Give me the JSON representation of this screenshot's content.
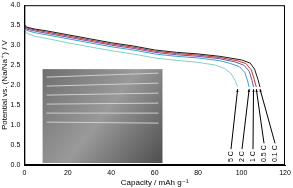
{
  "chart_data": {
    "type": "line",
    "x_label": "Capacity / mAh g⁻¹",
    "y_label": "Potential vs. (Na/Na⁺) / V",
    "series": [
      {
        "name": "0.1 C",
        "color": "#1a1a1a",
        "x": [
          0,
          1,
          5,
          10,
          20,
          30,
          40,
          50,
          60,
          70,
          80,
          90,
          100,
          104,
          106,
          107.5,
          108.5
        ],
        "values": [
          3.52,
          3.45,
          3.4,
          3.36,
          3.26,
          3.16,
          3.06,
          2.98,
          2.88,
          2.82,
          2.78,
          2.72,
          2.63,
          2.55,
          2.4,
          2.15,
          1.95
        ]
      },
      {
        "name": "0.5 C",
        "color": "#c0392b",
        "x": [
          0,
          1,
          5,
          10,
          20,
          30,
          40,
          50,
          60,
          70,
          80,
          90,
          98,
          102,
          104.5,
          105.8,
          106.8
        ],
        "values": [
          3.5,
          3.43,
          3.38,
          3.33,
          3.23,
          3.13,
          3.03,
          2.95,
          2.85,
          2.79,
          2.75,
          2.69,
          2.61,
          2.54,
          2.38,
          2.15,
          1.95
        ]
      },
      {
        "name": "1 C",
        "color": "#7d4fa8",
        "x": [
          0,
          1,
          5,
          10,
          20,
          30,
          40,
          50,
          60,
          70,
          80,
          90,
          97,
          101,
          103.5,
          104.8,
          105.5
        ],
        "values": [
          3.48,
          3.4,
          3.35,
          3.3,
          3.2,
          3.1,
          3.0,
          2.92,
          2.82,
          2.76,
          2.72,
          2.66,
          2.58,
          2.5,
          2.35,
          2.12,
          1.95
        ]
      },
      {
        "name": "2 C",
        "color": "#3b9fd1",
        "x": [
          0,
          1,
          5,
          10,
          20,
          30,
          40,
          50,
          60,
          70,
          80,
          90,
          95,
          99,
          101.5,
          102.8,
          103.5
        ],
        "values": [
          3.45,
          3.37,
          3.31,
          3.26,
          3.16,
          3.06,
          2.96,
          2.88,
          2.78,
          2.72,
          2.68,
          2.61,
          2.54,
          2.46,
          2.32,
          2.1,
          1.95
        ]
      },
      {
        "name": "5 C",
        "color": "#7fd3c8",
        "x": [
          0,
          1,
          5,
          10,
          20,
          30,
          40,
          50,
          60,
          70,
          80,
          88,
          92,
          95,
          97,
          98.2
        ],
        "values": [
          3.4,
          3.3,
          3.22,
          3.17,
          3.06,
          2.96,
          2.86,
          2.78,
          2.68,
          2.62,
          2.57,
          2.5,
          2.42,
          2.3,
          2.12,
          1.95
        ]
      }
    ],
    "xlim": [
      0,
      120
    ],
    "xticks": [
      0,
      20,
      40,
      60,
      80,
      100,
      120
    ],
    "ylim": [
      0,
      4
    ],
    "yticks": [
      {
        "value": 0,
        "label": "0.0"
      },
      0.5,
      {
        "value": 1,
        "label": "1.0"
      },
      1.5,
      {
        "value": 2,
        "label": "2.0"
      },
      2.5,
      {
        "value": 3,
        "label": "3.0"
      },
      3.5,
      {
        "value": 4,
        "label": "4.0"
      }
    ],
    "grid": false
  }
}
